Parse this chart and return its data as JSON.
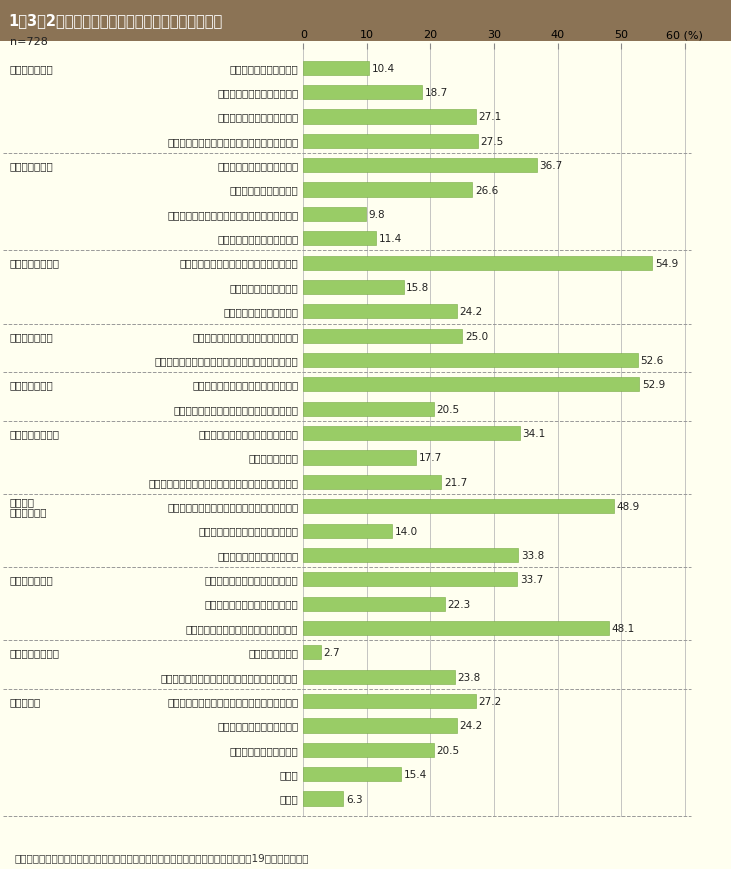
{
  "title": "1％3％2図　離れて生活を始めるに当たっての困難",
  "n_label": "n=728",
  "footnote": "（備考）内阑府「配偶者からの暴力の被害者の自立支援等に関する調査結果」（平成19年）より作成。",
  "bar_color": "#99cc66",
  "background_color": "#fffff0",
  "header_bg": "#8b7355",
  "header_text": "white",
  "categories": [
    {
      "label": "公的施設に入所できない",
      "group": "《住居のこと》",
      "value": 10.4
    },
    {
      "label": "民間購貸住宅に入居できない",
      "group": "",
      "value": 18.7
    },
    {
      "label": "公的購貸住宅に入居できない",
      "group": "",
      "value": 27.1
    },
    {
      "label": "民間購貸住宅に入居するための保証人がいない",
      "group": "",
      "value": 27.5
    },
    {
      "label": "適当な就職先が見つからない",
      "group": "《就労のこと》",
      "value": 36.7
    },
    {
      "label": "就職に必要な技能がない",
      "group": "",
      "value": 26.6
    },
    {
      "label": "どのように就職活動をすればよいかわからない",
      "group": "",
      "value": 9.8
    },
    {
      "label": "就職に必要な保証人がいない",
      "group": "",
      "value": 11.4
    },
    {
      "label": "当面の生活をするために必要なお金がない",
      "group": "《経済的なこと》",
      "value": 54.9
    },
    {
      "label": "生活保護が受けられない",
      "group": "",
      "value": 15.8
    },
    {
      "label": "児童扶養手当がもらえない",
      "group": "",
      "value": 24.2
    },
    {
      "label": "健康保险や年金などの手続がめんどう",
      "group": "《手続のこと》",
      "value": 25.0
    },
    {
      "label": "住所を知られないようにするため住民票を移せない",
      "group": "",
      "value": 52.6
    },
    {
      "label": "自分の体調や気持ちが回復していない",
      "group": "《健康のこと》",
      "value": 52.9
    },
    {
      "label": "お金がなくて病院での治療等を受けられない",
      "group": "",
      "value": 20.5
    },
    {
      "label": "子どもの就学や保育所に関すること",
      "group": "《子どものこと》",
      "value": 34.1
    },
    {
      "label": "子どもの問題行動",
      "group": "",
      "value": 17.7
    },
    {
      "label": "子どもを相手のもとから取り戻すことや子どもの親権",
      "group": "",
      "value": 21.7
    },
    {
      "label": "裁判や調停に時間やエネルギー，お金を要する",
      "group": "《裁判・\n調停のこと》",
      "value": 48.9
    },
    {
      "label": "保護命令の申し立て手続がめんどう",
      "group": "",
      "value": 14.0
    },
    {
      "label": "相手が離婚に応じてくれない",
      "group": "",
      "value": 33.8
    },
    {
      "label": "相手からの追跡や嫌がらせがある",
      "group": "《相手のこと》",
      "value": 33.7
    },
    {
      "label": "相手が子どもとの面会を要求する",
      "group": "",
      "value": 22.3
    },
    {
      "label": "相手が怖くて家に荷物を取りに行けない",
      "group": "",
      "value": 48.1
    },
    {
      "label": "母国語が通じない",
      "group": "《支援者のこと》",
      "value": 2.7
    },
    {
      "label": "公的機関等の支援者から心ない言葉をかけられた",
      "group": "",
      "value": 23.8
    },
    {
      "label": "どうすれば自立して生活できるのか情報がない",
      "group": "《その他》",
      "value": 27.2
    },
    {
      "label": "相談できる人が周りにいない",
      "group": "",
      "value": 24.2
    },
    {
      "label": "新しい環境になじめない",
      "group": "",
      "value": 20.5
    },
    {
      "label": "その他",
      "group": "",
      "value": 15.4
    },
    {
      "label": "無回答",
      "group": "",
      "value": 6.3
    }
  ],
  "dividers_after": [
    3,
    7,
    10,
    12,
    14,
    17,
    20,
    23,
    25
  ],
  "group_display": [
    "《住居のこと》",
    "《就労のこと》",
    "《経済的なこと》",
    "《手続のこと》",
    "《健康のこと》",
    "《子どものこと》",
    "《裁判・\n調停のこと》",
    "《相手のこと》",
    "《支援者のこと》",
    "《その他》"
  ]
}
